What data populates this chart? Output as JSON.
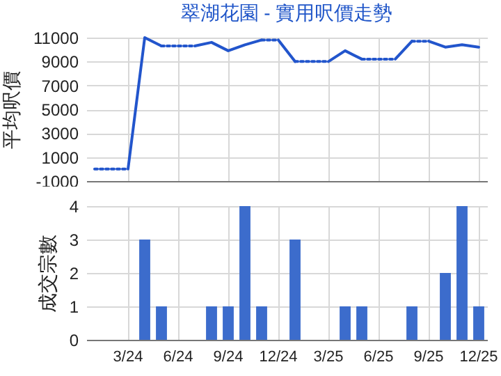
{
  "chart_data": [
    {
      "type": "line",
      "title": "翠湖花園 - 實用呎價走勢",
      "ylabel": "平均呎價",
      "categories": [
        null,
        null,
        null,
        null,
        null,
        null,
        null,
        null,
        null,
        null,
        null,
        null,
        null,
        null,
        null,
        null,
        null,
        null,
        null,
        null,
        null,
        null,
        null,
        null
      ],
      "series": [
        {
          "color": "#2255cc",
          "line_style": "solid",
          "values": [
            null,
            null,
            0,
            11000,
            10300,
            null,
            null,
            null,
            null,
            null,
            null,
            null,
            null,
            null,
            null,
            null,
            null,
            null,
            null,
            null,
            null,
            null,
            null,
            null
          ]
        },
        {
          "color": "#2255cc",
          "line_style": "solid",
          "values": [
            null,
            null,
            null,
            null,
            null,
            null,
            10300,
            10600,
            9900,
            10400,
            10800,
            null,
            null,
            null,
            null,
            null,
            null,
            null,
            null,
            null,
            null,
            null,
            null,
            null
          ]
        },
        {
          "color": "#2255cc",
          "line_style": "solid",
          "values": [
            null,
            null,
            null,
            null,
            null,
            null,
            null,
            null,
            null,
            null,
            null,
            10800,
            9000,
            null,
            null,
            null,
            null,
            null,
            null,
            null,
            null,
            null,
            null,
            null
          ]
        },
        {
          "color": "#2255cc",
          "line_style": "solid",
          "values": [
            null,
            null,
            null,
            null,
            null,
            null,
            null,
            null,
            null,
            null,
            null,
            null,
            null,
            null,
            9000,
            9900,
            9200,
            null,
            null,
            null,
            null,
            null,
            null,
            null
          ]
        },
        {
          "color": "#2255cc",
          "line_style": "solid",
          "values": [
            null,
            null,
            null,
            null,
            null,
            null,
            null,
            null,
            null,
            null,
            null,
            null,
            null,
            null,
            null,
            null,
            null,
            null,
            9200,
            10700,
            null,
            null,
            null,
            null
          ]
        },
        {
          "color": "#2255cc",
          "line_style": "solid",
          "values": [
            null,
            null,
            null,
            null,
            null,
            null,
            null,
            null,
            null,
            null,
            null,
            null,
            null,
            null,
            null,
            null,
            null,
            null,
            null,
            null,
            10700,
            10200,
            10400,
            10200
          ]
        },
        {
          "color": "#2255cc",
          "line_style": "dotted",
          "values": [
            0,
            0,
            0,
            null,
            null,
            null,
            null,
            null,
            null,
            null,
            null,
            null,
            null,
            null,
            null,
            null,
            null,
            null,
            null,
            null,
            null,
            null,
            null,
            null
          ]
        },
        {
          "color": "#2255cc",
          "line_style": "dotted",
          "values": [
            null,
            null,
            null,
            null,
            10300,
            10300,
            10300,
            null,
            null,
            null,
            null,
            null,
            null,
            null,
            null,
            null,
            null,
            null,
            null,
            null,
            null,
            null,
            null,
            null
          ]
        },
        {
          "color": "#2255cc",
          "line_style": "dotted",
          "values": [
            null,
            null,
            null,
            null,
            null,
            null,
            null,
            null,
            null,
            null,
            10800,
            10800,
            null,
            null,
            null,
            null,
            null,
            null,
            null,
            null,
            null,
            null,
            null,
            null
          ]
        },
        {
          "color": "#2255cc",
          "line_style": "dotted",
          "values": [
            null,
            null,
            null,
            null,
            null,
            null,
            null,
            null,
            null,
            null,
            null,
            null,
            9000,
            9000,
            9000,
            null,
            null,
            null,
            null,
            null,
            null,
            null,
            null,
            null
          ]
        },
        {
          "color": "#2255cc",
          "line_style": "dotted",
          "values": [
            null,
            null,
            null,
            null,
            null,
            null,
            null,
            null,
            null,
            null,
            null,
            null,
            null,
            null,
            null,
            null,
            9200,
            9200,
            9200,
            null,
            null,
            null,
            null,
            null
          ]
        },
        {
          "color": "#2255cc",
          "line_style": "dotted",
          "values": [
            null,
            null,
            null,
            null,
            null,
            null,
            null,
            null,
            null,
            null,
            null,
            null,
            null,
            null,
            null,
            null,
            null,
            null,
            null,
            10700,
            10700,
            null,
            null,
            null
          ]
        }
      ],
      "ylim": [
        -1000,
        11000
      ],
      "yticks": [
        -1000,
        1000,
        3000,
        5000,
        7000,
        9000,
        11000
      ],
      "grid": true,
      "tick_labels": "y"
    },
    {
      "type": "bar",
      "ylabel": "成交宗數",
      "categories": [
        null,
        null,
        "3/24",
        null,
        null,
        "6/24",
        null,
        null,
        "9/24",
        null,
        null,
        "12/24",
        null,
        null,
        "3/25",
        null,
        null,
        "6/25",
        null,
        null,
        "9/25",
        null,
        null,
        "12/25"
      ],
      "values": [
        0,
        0,
        0,
        3,
        1,
        0,
        0,
        1,
        1,
        4,
        1,
        0,
        3,
        0,
        0,
        1,
        1,
        0,
        0,
        1,
        0,
        2,
        4,
        1
      ],
      "color": "#3c6ccc",
      "ylim": [
        0,
        4
      ],
      "yticks": [
        0,
        1,
        2,
        3,
        4
      ],
      "grid": true
    }
  ]
}
